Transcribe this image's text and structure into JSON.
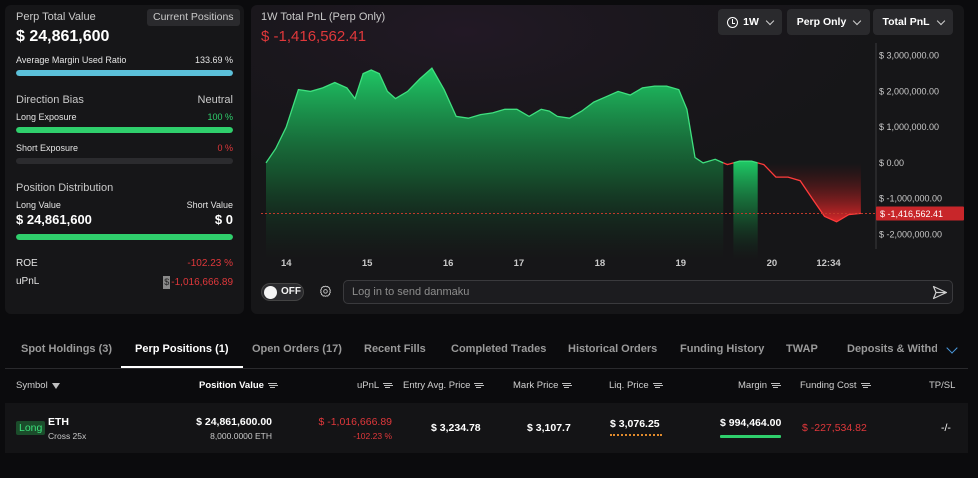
{
  "summary": {
    "title": "Perp Total Value",
    "current_positions_label": "Current Positions",
    "total_value": "$ 24,861,600",
    "avg_margin_label": "Average Margin Used Ratio",
    "avg_margin_value": "133.69 %",
    "avg_margin_fraction": 1.0,
    "direction_bias_label": "Direction Bias",
    "direction_bias_value": "Neutral",
    "long_exposure_label": "Long Exposure",
    "long_exposure_value": "100 %",
    "long_exposure_fraction": 1.0,
    "short_exposure_label": "Short Exposure",
    "short_exposure_value": "0 %",
    "short_exposure_fraction": 0.0,
    "position_distribution_label": "Position Distribution",
    "long_value_label": "Long Value",
    "long_value": "$ 24,861,600",
    "short_value_label": "Short Value",
    "short_value": "$ 0",
    "long_fraction": 1.0,
    "roe_label": "ROE",
    "roe_value": "-102.23 %",
    "upnl_label": "uPnL",
    "upnl_marker": "$",
    "upnl_value": "-1,016,666.89",
    "colors": {
      "green": "#2fcf6c",
      "red": "#e0383b",
      "margin_bar": "#5bc0d9"
    }
  },
  "chart_panel": {
    "title": "1W Total PnL (Perp Only)",
    "current_value": "$ -1,416,562.41",
    "timeframe_button": "1W",
    "filter_button": "Perp Only",
    "metric_button": "Total PnL",
    "toggle_label": "OFF",
    "danmaku_placeholder": "Log in to send danmaku"
  },
  "chart_data": {
    "type": "area",
    "x_ticks": [
      {
        "label": "14",
        "t": 0.25
      },
      {
        "label": "15",
        "t": 1.25
      },
      {
        "label": "16",
        "t": 2.25
      },
      {
        "label": "17",
        "t": 3.125
      },
      {
        "label": "18",
        "t": 4.125
      },
      {
        "label": "19",
        "t": 5.125
      },
      {
        "label": "20",
        "t": 6.25
      },
      {
        "label": "12:34",
        "t": 6.95
      }
    ],
    "y_ticks": [
      "$ 3,000,000.00",
      "$ 2,000,000.00",
      "$ 1,000,000.00",
      "$ 0.00",
      "$ -1,000,000.00",
      "$ -2,000,000.00"
    ],
    "y_tick_values": [
      3000000,
      2000000,
      1000000,
      0,
      -1000000,
      -2000000
    ],
    "ylim": [
      -2300000,
      3300000
    ],
    "xlim": [
      0,
      7.45
    ],
    "current_value_label": "$ -1,416,562.41",
    "current_value": -1416562.41,
    "t": [
      0.0,
      0.12,
      0.25,
      0.4,
      0.55,
      0.7,
      0.85,
      1.0,
      1.1,
      1.2,
      1.3,
      1.4,
      1.5,
      1.6,
      1.75,
      1.9,
      2.05,
      2.2,
      2.35,
      2.5,
      2.65,
      2.8,
      2.95,
      3.1,
      3.25,
      3.4,
      3.5,
      3.6,
      3.75,
      3.9,
      4.05,
      4.2,
      4.35,
      4.5,
      4.65,
      4.8,
      4.95,
      5.1,
      5.2,
      5.3,
      5.4,
      5.55,
      5.7,
      5.85,
      6.0,
      6.15,
      6.3,
      6.45,
      6.6,
      6.75,
      6.9,
      7.05,
      7.2,
      7.35
    ],
    "values": [
      0,
      400000,
      1000000,
      2050000,
      2000000,
      2100000,
      2250000,
      2100000,
      1800000,
      2500000,
      2600000,
      2500000,
      2000000,
      1800000,
      2000000,
      2350000,
      2650000,
      2050000,
      1300000,
      1250000,
      1350000,
      1400000,
      1500000,
      1500000,
      1300000,
      1500000,
      1450000,
      1300000,
      1250000,
      1450000,
      1700000,
      1850000,
      2000000,
      1900000,
      2100000,
      2150000,
      2150000,
      2050000,
      1500000,
      150000,
      0,
      100000,
      -50000,
      50000,
      50000,
      -50000,
      -400000,
      -400000,
      -500000,
      -1000000,
      -1500000,
      -1650000,
      -1450000,
      -1416562.41
    ]
  },
  "tabs": [
    {
      "label": "Spot Holdings (3)",
      "active": false
    },
    {
      "label": "Perp Positions (1)",
      "active": true
    },
    {
      "label": "Open Orders (17)",
      "active": false
    },
    {
      "label": "Recent Fills",
      "active": false
    },
    {
      "label": "Completed Trades",
      "active": false
    },
    {
      "label": "Historical Orders",
      "active": false
    },
    {
      "label": "Funding History",
      "active": false
    },
    {
      "label": "TWAP",
      "active": false
    },
    {
      "label": "Deposits & Withdra",
      "active": false
    }
  ],
  "table": {
    "headers": {
      "symbol": "Symbol",
      "position_value": "Position Value",
      "upnl": "uPnL",
      "entry": "Entry Avg. Price",
      "mark": "Mark Price",
      "liq": "Liq. Price",
      "margin": "Margin",
      "funding": "Funding Cost",
      "tpsl": "TP/SL"
    },
    "rows": [
      {
        "side": "Long",
        "symbol": "ETH",
        "leverage": "Cross 25x",
        "position_value": "$ 24,861,600.00",
        "position_size": "8,000.0000 ETH",
        "upnl": "$ -1,016,666.89",
        "roe": "-102.23 %",
        "entry": "$ 3,234.78",
        "mark": "$ 3,107.7",
        "liq": "$ 3,076.25",
        "margin": "$ 994,464.00",
        "funding": "$ -227,534.82",
        "tpsl": "-/-"
      }
    ]
  }
}
